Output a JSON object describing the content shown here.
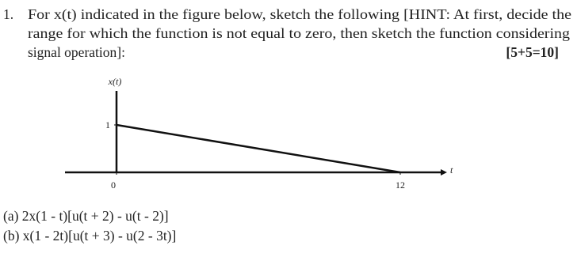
{
  "question": {
    "number": "1.",
    "lines": [
      "For x(t) indicated in the figure below, sketch the following [HINT: At first, decide the",
      "range for which the function is not equal to zero, then sketch the function considering",
      "signal operation]:"
    ],
    "marks": "[5+5=10]"
  },
  "figure": {
    "y_label": "x(t)",
    "x_label": "t",
    "xticks": [
      0,
      12
    ],
    "yticks": [
      1
    ]
  },
  "parts": [
    "(a) 2x(1 - t)[u(t + 2) - u(t - 2)]",
    "(b) x(1 - 2t)[u(t + 3) - u(2 - 3t)]"
  ]
}
